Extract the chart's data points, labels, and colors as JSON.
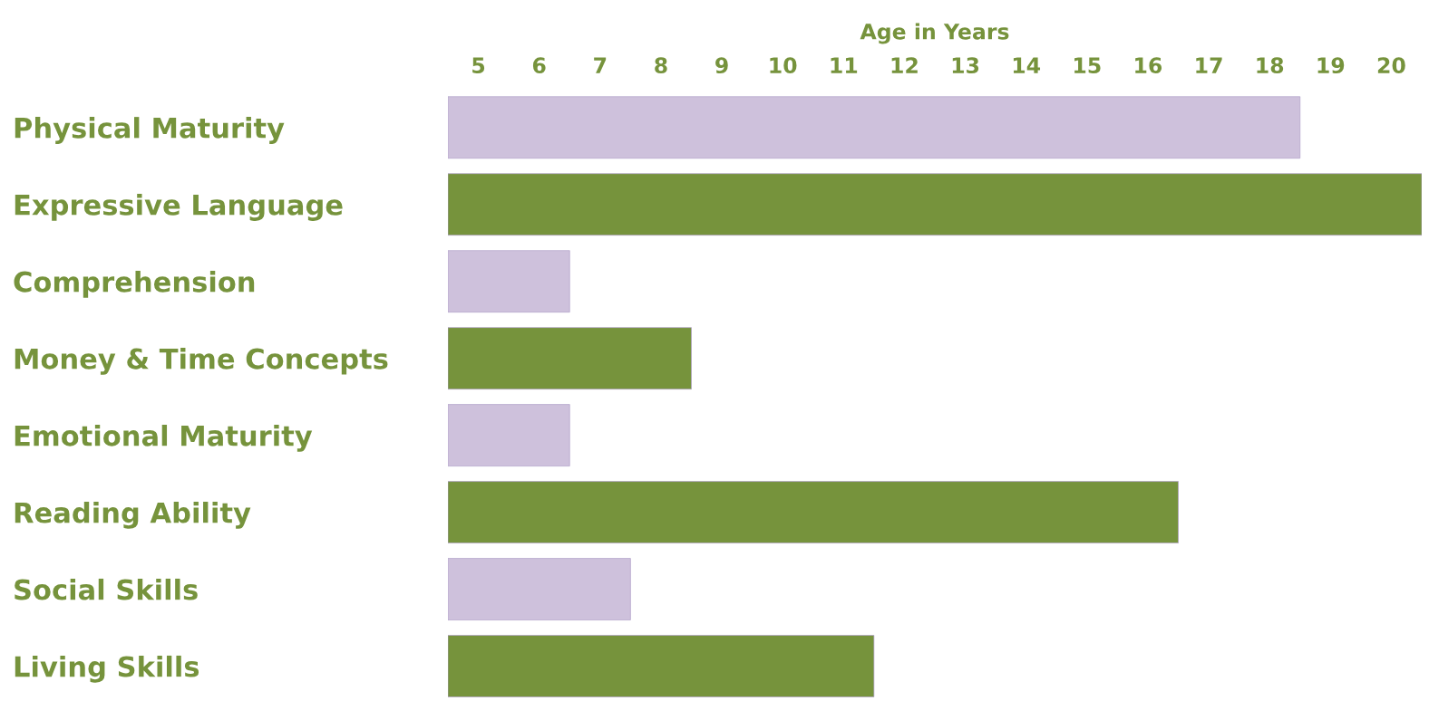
{
  "chart_data": {
    "type": "bar",
    "orientation": "horizontal",
    "xlabel": "Age in Years",
    "categories": [
      "Physical Maturity",
      "Expressive Language",
      "Comprehension",
      "Money & Time Concepts",
      "Emotional Maturity",
      "Reading Ability",
      "Social Skills",
      "Living Skills"
    ],
    "base": [
      4.5,
      4.5,
      4.5,
      4.5,
      4.5,
      4.5,
      4.5,
      4.5
    ],
    "values": [
      14,
      16,
      2,
      4,
      2,
      12,
      3,
      7
    ],
    "colors": [
      "#cec1dc",
      "#76933c",
      "#cec1dc",
      "#76933c",
      "#cec1dc",
      "#76933c",
      "#cec1dc",
      "#76933c"
    ],
    "xlim": [
      4.5,
      20.5
    ],
    "xticks": [
      5,
      6,
      7,
      8,
      9,
      10,
      11,
      12,
      13,
      14,
      15,
      16,
      17,
      18,
      19,
      20
    ],
    "grid": false,
    "legend": false
  }
}
